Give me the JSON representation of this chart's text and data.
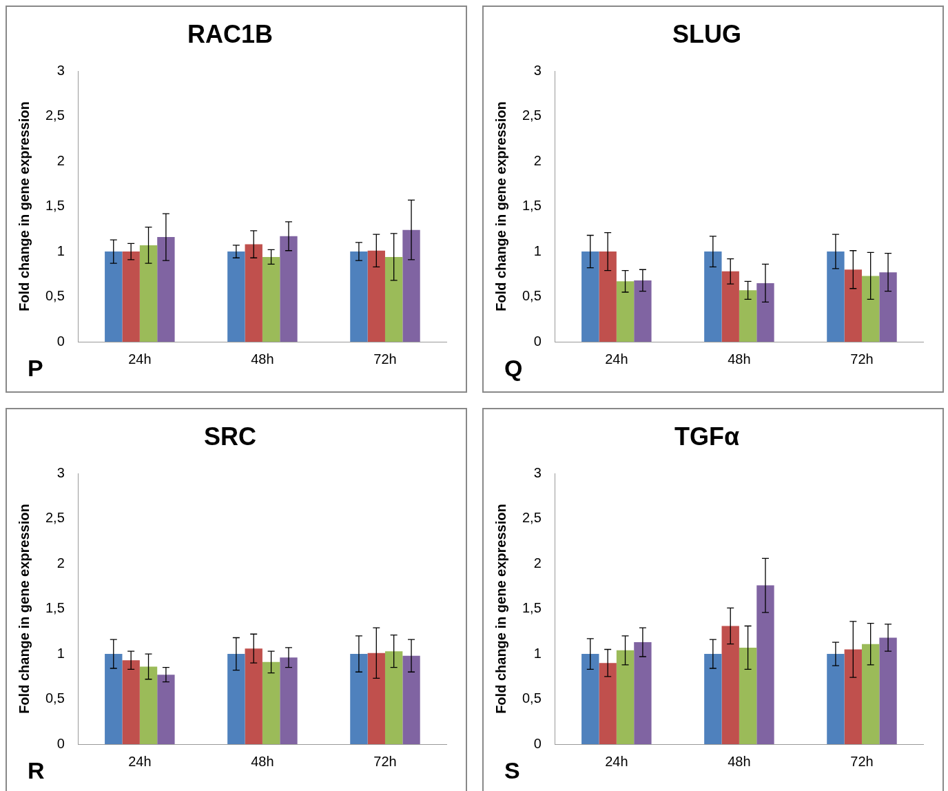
{
  "chart_data": [
    {
      "type": "bar",
      "title": "RAC1B",
      "ylabel": "Fold change in gene expression",
      "annotations": [
        "P"
      ],
      "categories": [
        "24h",
        "48h",
        "72h"
      ],
      "ylim": [
        0,
        3
      ],
      "yticks": [
        0,
        {
          "value": 0.5,
          "label": "0,5"
        },
        1,
        {
          "value": 1.5,
          "label": "1,5"
        },
        2,
        {
          "value": 2.5,
          "label": "2,5"
        },
        3
      ],
      "grid": false,
      "legend": false,
      "series": [
        {
          "color": "#4f81bd",
          "values": [
            1,
            1,
            1
          ],
          "errors": [
            0.13,
            0.07,
            0.1
          ]
        },
        {
          "color": "#c0504d",
          "values": [
            1,
            1.08,
            1.01
          ],
          "errors": [
            0.09,
            0.15,
            0.18
          ]
        },
        {
          "color": "#9bbb59",
          "values": [
            1.07,
            0.94,
            0.94
          ],
          "errors": [
            0.2,
            0.08,
            0.26
          ]
        },
        {
          "color": "#8064a2",
          "values": [
            1.16,
            1.17,
            1.24
          ],
          "errors": [
            0.26,
            0.16,
            0.33
          ]
        }
      ]
    },
    {
      "type": "bar",
      "title": "SLUG",
      "ylabel": "Fold change in gene expression",
      "annotations": [
        "Q"
      ],
      "categories": [
        "24h",
        "48h",
        "72h"
      ],
      "ylim": [
        0,
        3
      ],
      "yticks": [
        0,
        {
          "value": 0.5,
          "label": "0,5"
        },
        1,
        {
          "value": 1.5,
          "label": "1,5"
        },
        2,
        {
          "value": 2.5,
          "label": "2,5"
        },
        3
      ],
      "grid": false,
      "legend": false,
      "series": [
        {
          "color": "#4f81bd",
          "values": [
            1,
            1,
            1
          ],
          "errors": [
            0.18,
            0.17,
            0.19
          ]
        },
        {
          "color": "#c0504d",
          "values": [
            1,
            0.78,
            0.8
          ],
          "errors": [
            0.21,
            0.14,
            0.21
          ]
        },
        {
          "color": "#9bbb59",
          "values": [
            0.67,
            0.57,
            0.73
          ],
          "errors": [
            0.12,
            0.1,
            0.26
          ]
        },
        {
          "color": "#8064a2",
          "values": [
            0.68,
            0.65,
            0.77
          ],
          "errors": [
            0.12,
            0.21,
            0.21
          ]
        }
      ]
    },
    {
      "type": "bar",
      "title": "SRC",
      "ylabel": "Fold change in gene expression",
      "annotations": [
        "R"
      ],
      "categories": [
        "24h",
        "48h",
        "72h"
      ],
      "ylim": [
        0,
        3
      ],
      "yticks": [
        0,
        {
          "value": 0.5,
          "label": "0,5"
        },
        1,
        {
          "value": 1.5,
          "label": "1,5"
        },
        2,
        {
          "value": 2.5,
          "label": "2,5"
        },
        3
      ],
      "grid": false,
      "legend": false,
      "series": [
        {
          "color": "#4f81bd",
          "values": [
            1,
            1,
            1
          ],
          "errors": [
            0.16,
            0.18,
            0.2
          ]
        },
        {
          "color": "#c0504d",
          "values": [
            0.93,
            1.06,
            1.01
          ],
          "errors": [
            0.1,
            0.16,
            0.28
          ]
        },
        {
          "color": "#9bbb59",
          "values": [
            0.86,
            0.91,
            1.03
          ],
          "errors": [
            0.14,
            0.12,
            0.18
          ]
        },
        {
          "color": "#8064a2",
          "values": [
            0.77,
            0.96,
            0.98
          ],
          "errors": [
            0.08,
            0.11,
            0.18
          ]
        }
      ]
    },
    {
      "type": "bar",
      "title": "TGFα",
      "ylabel": "Fold change in gene expression",
      "annotations": [
        "S"
      ],
      "categories": [
        "24h",
        "48h",
        "72h"
      ],
      "ylim": [
        0,
        3
      ],
      "yticks": [
        0,
        {
          "value": 0.5,
          "label": "0,5"
        },
        1,
        {
          "value": 1.5,
          "label": "1,5"
        },
        2,
        {
          "value": 2.5,
          "label": "2,5"
        },
        3
      ],
      "grid": false,
      "legend": false,
      "series": [
        {
          "color": "#4f81bd",
          "values": [
            1,
            1,
            1
          ],
          "errors": [
            0.17,
            0.16,
            0.13
          ]
        },
        {
          "color": "#c0504d",
          "values": [
            0.9,
            1.31,
            1.05
          ],
          "errors": [
            0.15,
            0.2,
            0.31
          ]
        },
        {
          "color": "#9bbb59",
          "values": [
            1.04,
            1.07,
            1.11
          ],
          "errors": [
            0.16,
            0.24,
            0.23
          ]
        },
        {
          "color": "#8064a2",
          "values": [
            1.13,
            1.76,
            1.18
          ],
          "errors": [
            0.16,
            0.3,
            0.15
          ]
        }
      ]
    }
  ]
}
